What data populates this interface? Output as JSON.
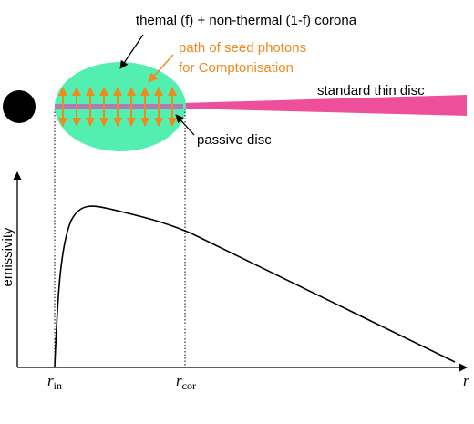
{
  "labels": {
    "corona": "themal (f) + non-thermal (1-f) corona",
    "seed_line1": "path of seed photons",
    "seed_line2": "for Comptonisation",
    "thin_disc": "standard thin disc",
    "passive_disc": "passive disc",
    "y_axis": "emissivity",
    "r_in_main": "r",
    "r_in_sub": "in",
    "r_cor_main": "r",
    "r_cor_sub": "cor",
    "x_axis": "r"
  },
  "colors": {
    "corona_fill": "#52efb0",
    "seed_arrows": "#ef8a1c",
    "thin_disc": "#ee4f9b",
    "passive_disc": "#b07ab8",
    "black_hole": "#000000",
    "curve": "#000000"
  },
  "icons": {
    "black_hole": "filled-black-circle"
  }
}
